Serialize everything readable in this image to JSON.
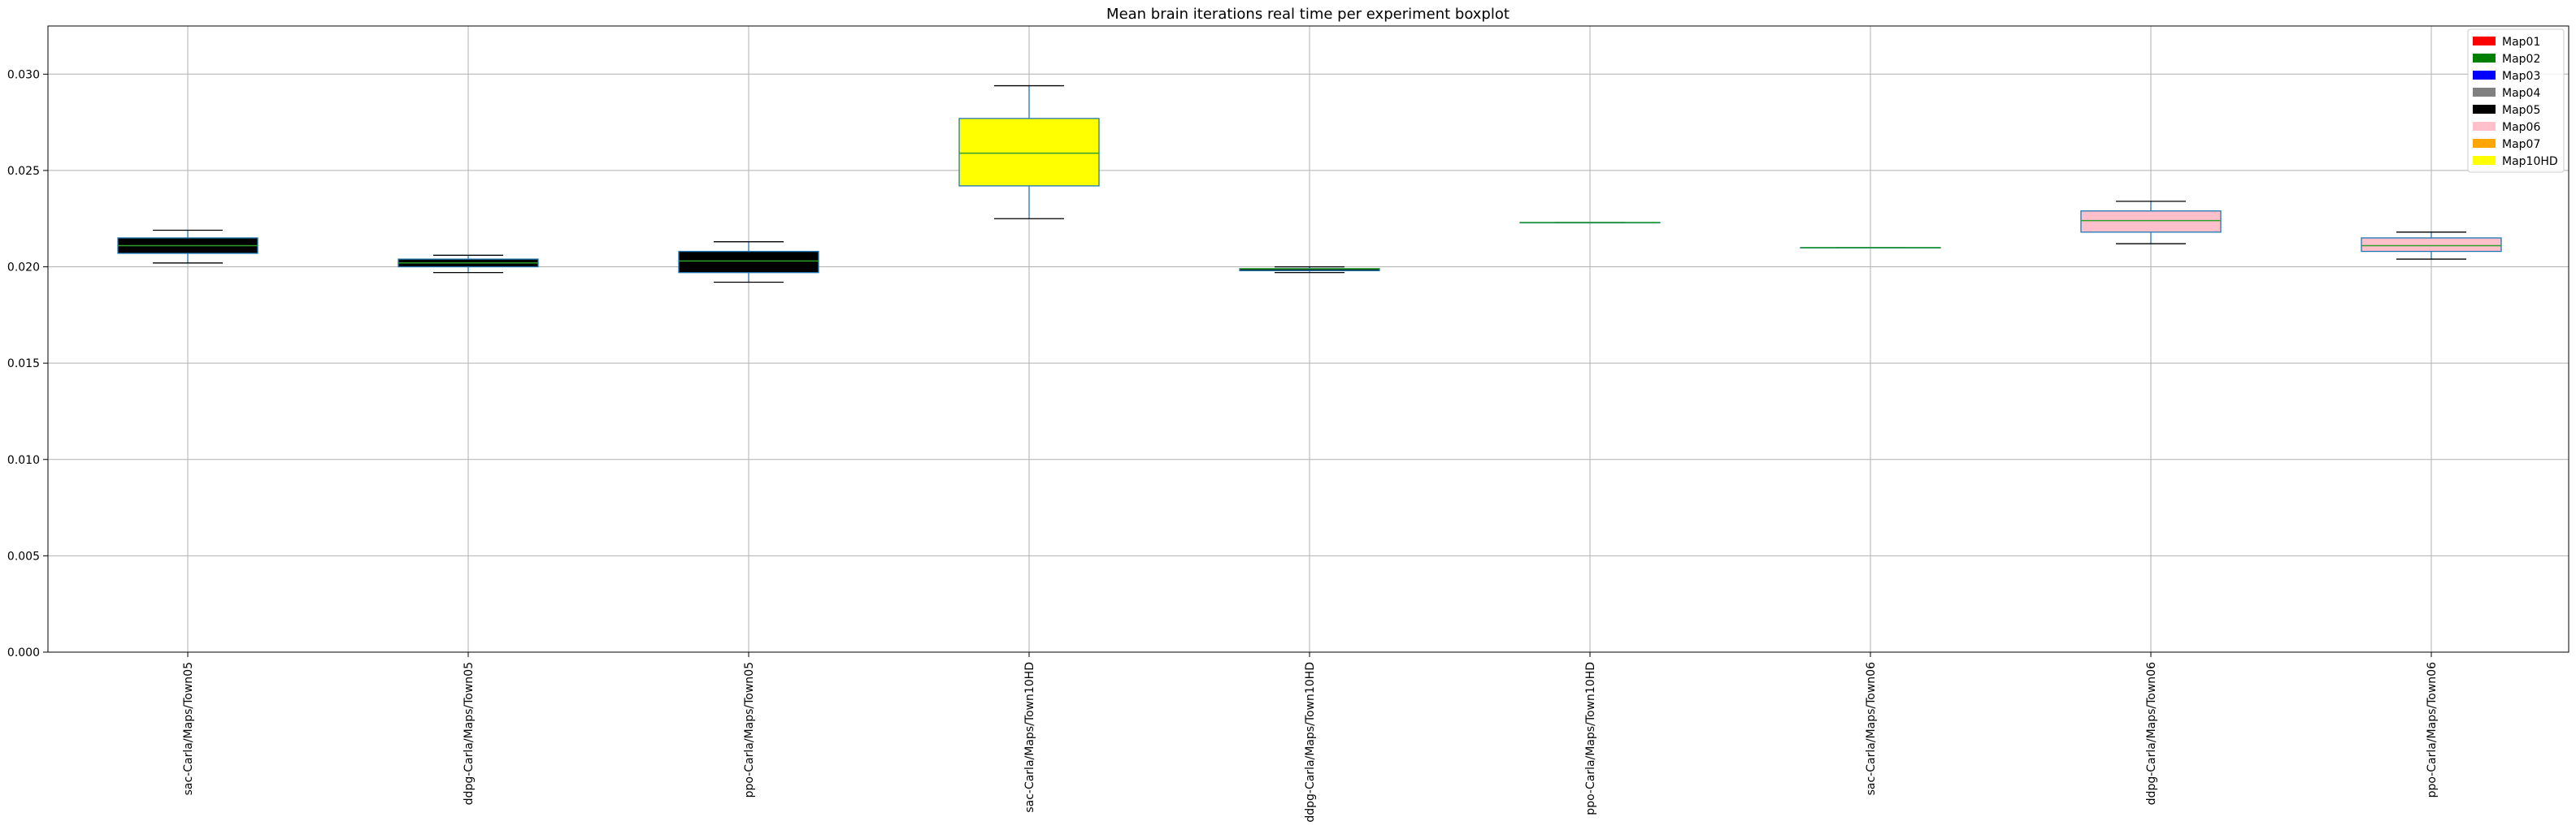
{
  "chart_data": {
    "type": "box",
    "title": "Mean brain iterations real time per experiment boxplot",
    "xlabel": "",
    "ylabel": "",
    "ylim": [
      0.0,
      0.0325
    ],
    "yticks": [
      "0.000",
      "0.005",
      "0.010",
      "0.015",
      "0.020",
      "0.025",
      "0.030"
    ],
    "ytick_values": [
      0.0,
      0.005,
      0.01,
      0.015,
      0.02,
      0.025,
      0.03
    ],
    "grid": true,
    "legend_position": "top-right",
    "categories": [
      "sac-Carla/Maps/Town05",
      "ddpg-Carla/Maps/Town05",
      "ppo-Carla/Maps/Town05",
      "sac-Carla/Maps/Town10HD",
      "ddpg-Carla/Maps/Town10HD",
      "ppo-Carla/Maps/Town10HD",
      "sac-Carla/Maps/Town06",
      "ddpg-Carla/Maps/Town06",
      "ppo-Carla/Maps/Town06"
    ],
    "boxes": [
      {
        "whislo": 0.0202,
        "q1": 0.0207,
        "med": 0.0211,
        "q3": 0.0215,
        "whishi": 0.0219,
        "fill": "#000000"
      },
      {
        "whislo": 0.0197,
        "q1": 0.02,
        "med": 0.0202,
        "q3": 0.0204,
        "whishi": 0.0206,
        "fill": "#000000"
      },
      {
        "whislo": 0.0192,
        "q1": 0.0197,
        "med": 0.0203,
        "q3": 0.0208,
        "whishi": 0.0213,
        "fill": "#000000"
      },
      {
        "whislo": 0.0225,
        "q1": 0.0242,
        "med": 0.0259,
        "q3": 0.0277,
        "whishi": 0.0294,
        "fill": "#ffff00"
      },
      {
        "whislo": 0.0197,
        "q1": 0.0198,
        "med": 0.0199,
        "q3": 0.0199,
        "whishi": 0.02,
        "fill": "#000000"
      },
      {
        "whislo": 0.0223,
        "q1": 0.0223,
        "med": 0.0223,
        "q3": 0.0223,
        "whishi": 0.0223,
        "fill": "#ffff00"
      },
      {
        "whislo": 0.021,
        "q1": 0.021,
        "med": 0.021,
        "q3": 0.021,
        "whishi": 0.021,
        "fill": "#ffc0cb"
      },
      {
        "whislo": 0.0212,
        "q1": 0.0218,
        "med": 0.0224,
        "q3": 0.0229,
        "whishi": 0.0234,
        "fill": "#ffc0cb"
      },
      {
        "whislo": 0.0204,
        "q1": 0.0208,
        "med": 0.0211,
        "q3": 0.0215,
        "whishi": 0.0218,
        "fill": "#ffc0cb"
      }
    ],
    "legend": [
      {
        "label": "Map01",
        "color": "#ff0000"
      },
      {
        "label": "Map02",
        "color": "#008000"
      },
      {
        "label": "Map03",
        "color": "#0000ff"
      },
      {
        "label": "Map04",
        "color": "#808080"
      },
      {
        "label": "Map05",
        "color": "#000000"
      },
      {
        "label": "Map06",
        "color": "#ffc0cb"
      },
      {
        "label": "Map07",
        "color": "#ffa500"
      },
      {
        "label": "Map10HD",
        "color": "#ffff00"
      }
    ],
    "colors": {
      "box_edge": "#1f77b4",
      "median": "#2ca02c",
      "whisker": "#1f77b4",
      "cap": "#000000",
      "grid": "#b0b0b0"
    }
  }
}
